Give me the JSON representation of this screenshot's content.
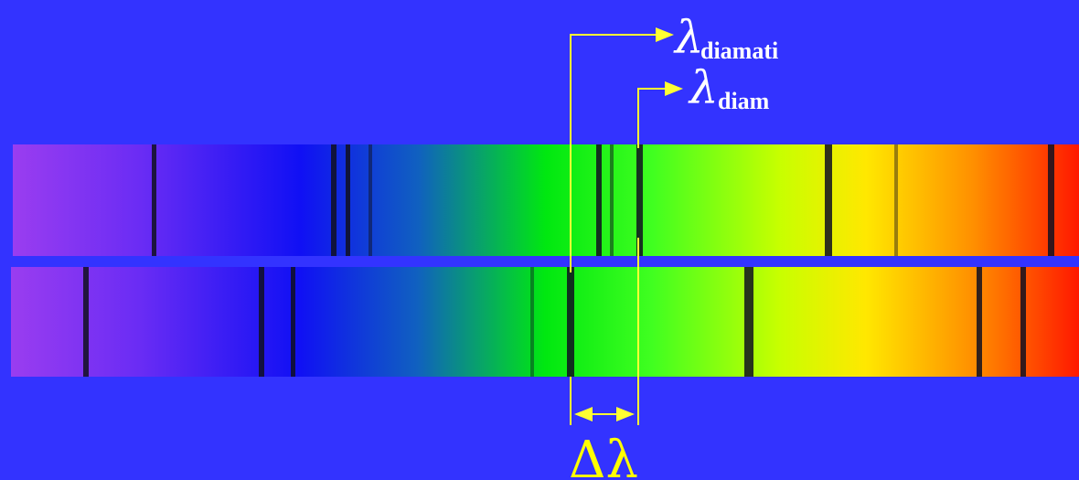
{
  "labels": {
    "observed": {
      "symbol": "λ",
      "subscript": "diamati"
    },
    "rest": {
      "symbol": "λ",
      "subscript": "diam"
    },
    "shift": "Δλ"
  }
}
